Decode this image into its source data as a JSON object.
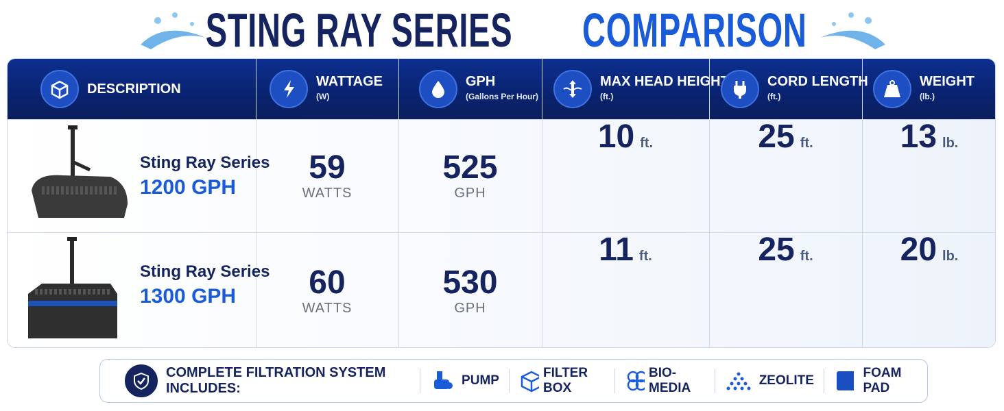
{
  "title": {
    "main": "STING RAY SERIES",
    "highlight": "COMPARISON"
  },
  "table": {
    "headers": [
      {
        "label": "DESCRIPTION"
      },
      {
        "label": "WATTAGE",
        "note": "(W)"
      },
      {
        "label": "GPH",
        "note": "(Gallons Per Hour)"
      },
      {
        "label": "MAX HEAD HEIGHT",
        "note": "(ft.)"
      },
      {
        "label": "CORD LENGTH",
        "note": "(ft.)"
      },
      {
        "label": "WEIGHT",
        "note": "(lb.)"
      }
    ],
    "rows": [
      {
        "name": "Sting Ray Series",
        "model": "1200 GPH",
        "cells": [
          {
            "value": 59,
            "unit": "WATTS"
          },
          {
            "value": 525,
            "unit": "GPH"
          },
          {
            "value": 10,
            "unit": "ft."
          },
          {
            "value": 25,
            "unit": "ft."
          },
          {
            "value": 13,
            "unit": "lb."
          }
        ]
      },
      {
        "name": "Sting Ray Series",
        "model": "1300 GPH",
        "cells": [
          {
            "value": 60,
            "unit": "WATTS"
          },
          {
            "value": 530,
            "unit": "GPH"
          },
          {
            "value": 11,
            "unit": "ft."
          },
          {
            "value": 25,
            "unit": "ft."
          },
          {
            "value": 20,
            "unit": "lb."
          }
        ]
      }
    ]
  },
  "footer": {
    "label": "COMPLETE FILTRATION SYSTEM INCLUDES:",
    "items": [
      "PUMP",
      "FILTER BOX",
      "BIO-MEDIA",
      "ZEOLITE",
      "FOAM PAD"
    ]
  }
}
